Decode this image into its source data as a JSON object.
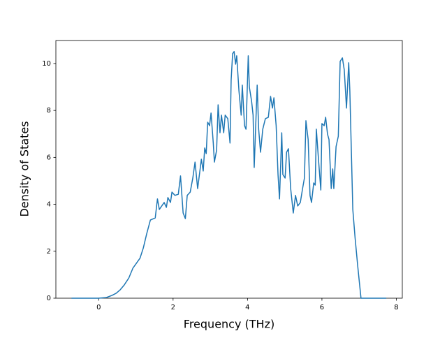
{
  "chart_data": {
    "type": "line",
    "xlabel": "Frequency (THz)",
    "ylabel": "Density of States",
    "color": "#1f77b4",
    "x": [
      -0.73,
      0,
      0.21,
      0.36,
      0.47,
      0.58,
      0.69,
      0.81,
      0.92,
      1.11,
      1.2,
      1.29,
      1.39,
      1.52,
      1.58,
      1.63,
      1.76,
      1.82,
      1.86,
      1.93,
      1.97,
      2.05,
      2.14,
      2.2,
      2.27,
      2.33,
      2.38,
      2.46,
      2.53,
      2.59,
      2.66,
      2.76,
      2.81,
      2.85,
      2.89,
      2.93,
      2.98,
      3.02,
      3.08,
      3.11,
      3.17,
      3.21,
      3.26,
      3.3,
      3.36,
      3.4,
      3.47,
      3.53,
      3.56,
      3.6,
      3.64,
      3.68,
      3.71,
      3.77,
      3.83,
      3.86,
      3.92,
      3.96,
      4.02,
      4.05,
      4.11,
      4.15,
      4.18,
      4.26,
      4.3,
      4.35,
      4.41,
      4.48,
      4.56,
      4.62,
      4.67,
      4.71,
      4.77,
      4.82,
      4.86,
      4.92,
      4.95,
      5.01,
      5.05,
      5.1,
      5.16,
      5.23,
      5.29,
      5.35,
      5.42,
      5.48,
      5.53,
      5.57,
      5.63,
      5.68,
      5.72,
      5.78,
      5.82,
      5.85,
      5.91,
      5.97,
      6.0,
      6.06,
      6.1,
      6.15,
      6.19,
      6.25,
      6.29,
      6.32,
      6.38,
      6.44,
      6.49,
      6.55,
      6.6,
      6.66,
      6.72,
      6.75,
      6.83,
      6.89,
      6.96,
      7.05,
      7.73
    ],
    "values": [
      0,
      0,
      0.03,
      0.12,
      0.21,
      0.36,
      0.57,
      0.86,
      1.28,
      1.7,
      2.14,
      2.74,
      3.33,
      3.42,
      4.23,
      3.78,
      4.08,
      3.87,
      4.29,
      4.08,
      4.52,
      4.38,
      4.43,
      5.21,
      3.63,
      3.39,
      4.38,
      4.52,
      5.12,
      5.8,
      4.67,
      5.92,
      5.42,
      6.4,
      6.16,
      7.5,
      7.35,
      7.89,
      6.61,
      5.8,
      6.31,
      8.24,
      7.05,
      7.8,
      7.05,
      7.8,
      7.65,
      6.61,
      9.29,
      10.42,
      10.51,
      9.97,
      10.33,
      8.84,
      7.8,
      9.08,
      7.35,
      7.2,
      10.33,
      8.99,
      8.39,
      7.8,
      5.57,
      9.08,
      7.2,
      6.22,
      7.2,
      7.65,
      7.71,
      8.6,
      8.1,
      8.54,
      7.35,
      5.27,
      4.23,
      7.05,
      5.27,
      5.12,
      6.22,
      6.37,
      4.67,
      3.63,
      4.38,
      3.93,
      4.08,
      4.67,
      5.12,
      7.56,
      6.76,
      4.38,
      4.08,
      4.91,
      4.82,
      7.2,
      5.86,
      4.61,
      7.44,
      7.35,
      7.71,
      6.99,
      6.76,
      4.67,
      5.51,
      4.67,
      6.46,
      6.9,
      10.09,
      10.24,
      9.73,
      8.1,
      10.03,
      8.84,
      3.78,
      2.59,
      1.4,
      0,
      0
    ],
    "xlim": [
      -1.15,
      8.16
    ],
    "xticks": [
      0,
      2,
      4,
      6,
      8
    ],
    "ylim": [
      0,
      10.98
    ],
    "yticks": [
      0,
      2,
      4,
      6,
      8,
      10
    ],
    "grid": false
  }
}
